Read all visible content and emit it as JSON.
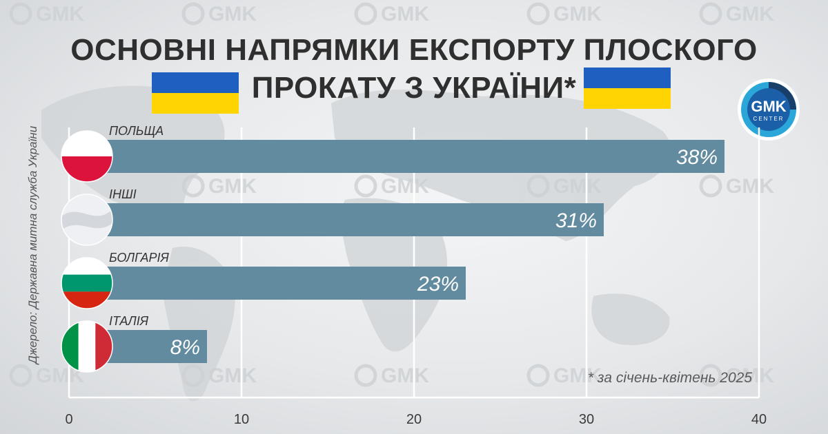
{
  "title": {
    "line1": "ОСНОВНІ НАПРЯМКИ ЕКСПОРТУ ПЛОСКОГО",
    "line2": "ПРОКАТУ З УКРАЇНИ*"
  },
  "logo": {
    "text": "GMK",
    "subtext": "CENTER"
  },
  "watermark_text": "GMK",
  "source": "Джерело: Державна митна служба України",
  "footnote": "* за січень-квітень 2025",
  "colors": {
    "bar": "#628ba0",
    "title": "#2f2f2f",
    "axis": "#ffffff",
    "ua_blue": "#1f5fbf",
    "ua_yellow": "#ffd400",
    "logo_bg": "#1a5fa8",
    "logo_ring": "#2aa7d8"
  },
  "icons": [
    "flag-poland-icon",
    "flag-other-icon",
    "flag-bulgaria-icon",
    "flag-italy-icon",
    "ua-flag-icon",
    "gmk-logo-icon"
  ],
  "chart_data": {
    "type": "bar",
    "orientation": "horizontal",
    "categories": [
      "ПОЛЬЩА",
      "ІНШІ",
      "БОЛГАРІЯ",
      "ІТАЛІЯ"
    ],
    "values": [
      38,
      31,
      23,
      8
    ],
    "value_labels": [
      "38%",
      "31%",
      "23%",
      "8%"
    ],
    "xlim": [
      0,
      40
    ],
    "xticks": [
      0,
      10,
      20,
      30,
      40
    ],
    "grid": true
  }
}
